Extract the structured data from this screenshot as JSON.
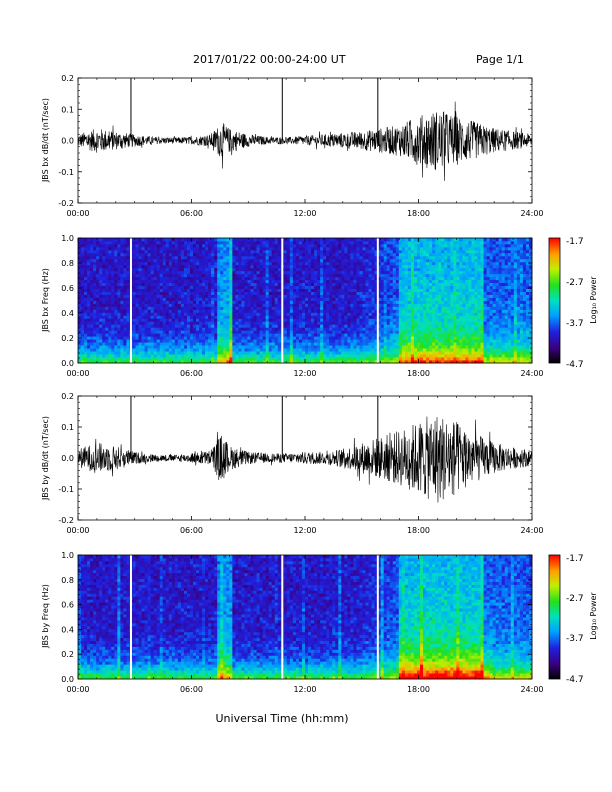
{
  "header": {
    "title": "2017/01/22  00:00-24:00 UT",
    "page": "Page 1/1"
  },
  "xlabel": "Universal Time (hh:mm)",
  "colorbar": {
    "label": "Log₁₀ Power",
    "ticks": [
      "-1.7",
      "-2.7",
      "-3.7",
      "-4.7"
    ],
    "range": [
      -4.7,
      -1.7
    ]
  },
  "chart_data": [
    {
      "type": "line",
      "name": "bx-waveform",
      "ylabel": "JBS bx dB/dt (nT/sec)",
      "x_ticks": [
        "00:00",
        "06:00",
        "12:00",
        "18:00",
        "24:00"
      ],
      "xlim_hours": [
        0,
        24
      ],
      "y_ticks": [
        "0.2",
        "0.1",
        "0.0",
        "-0.1",
        "-0.2"
      ],
      "ylim": [
        -0.2,
        0.2
      ],
      "envelope": [
        {
          "h": 0,
          "a": 0.02
        },
        {
          "h": 1,
          "a": 0.04
        },
        {
          "h": 2,
          "a": 0.03
        },
        {
          "h": 3,
          "a": 0.02
        },
        {
          "h": 4,
          "a": 0.012
        },
        {
          "h": 5,
          "a": 0.01
        },
        {
          "h": 6,
          "a": 0.012
        },
        {
          "h": 7,
          "a": 0.02
        },
        {
          "h": 7.6,
          "a": 0.06
        },
        {
          "h": 8,
          "a": 0.04
        },
        {
          "h": 9,
          "a": 0.02
        },
        {
          "h": 10,
          "a": 0.012
        },
        {
          "h": 11,
          "a": 0.01
        },
        {
          "h": 12,
          "a": 0.015
        },
        {
          "h": 13,
          "a": 0.02
        },
        {
          "h": 14,
          "a": 0.025
        },
        {
          "h": 15,
          "a": 0.03
        },
        {
          "h": 16,
          "a": 0.04
        },
        {
          "h": 17,
          "a": 0.05
        },
        {
          "h": 18,
          "a": 0.08
        },
        {
          "h": 19,
          "a": 0.1
        },
        {
          "h": 20,
          "a": 0.08
        },
        {
          "h": 21,
          "a": 0.06
        },
        {
          "h": 22,
          "a": 0.04
        },
        {
          "h": 23,
          "a": 0.03
        },
        {
          "h": 24,
          "a": 0.02
        }
      ],
      "spikes": [
        {
          "h": 2.8,
          "y": 0.2
        },
        {
          "h": 10.8,
          "y": 0.2
        },
        {
          "h": 15.85,
          "y": 0.2
        }
      ]
    },
    {
      "type": "heatmap",
      "name": "bx-spectrogram",
      "ylabel": "JBS bx Freq (Hz)",
      "x_ticks": [
        "00:00",
        "06:00",
        "12:00",
        "18:00",
        "24:00"
      ],
      "xlim_hours": [
        0,
        24
      ],
      "y_ticks": [
        "1.0",
        "0.8",
        "0.6",
        "0.4",
        "0.2",
        "0.0"
      ],
      "ylim": [
        0,
        1.0
      ],
      "data_gaps_hours": [
        2.8,
        10.8,
        15.85
      ]
    },
    {
      "type": "line",
      "name": "by-waveform",
      "ylabel": "JBS by dB/dt (nT/sec)",
      "x_ticks": [
        "00:00",
        "06:00",
        "12:00",
        "18:00",
        "24:00"
      ],
      "xlim_hours": [
        0,
        24
      ],
      "y_ticks": [
        "0.2",
        "0.1",
        "0.0",
        "-0.1",
        "-0.2"
      ],
      "ylim": [
        -0.2,
        0.2
      ],
      "envelope": [
        {
          "h": 0,
          "a": 0.03
        },
        {
          "h": 1,
          "a": 0.05
        },
        {
          "h": 2,
          "a": 0.04
        },
        {
          "h": 3,
          "a": 0.02
        },
        {
          "h": 4,
          "a": 0.012
        },
        {
          "h": 5,
          "a": 0.01
        },
        {
          "h": 6,
          "a": 0.015
        },
        {
          "h": 7,
          "a": 0.025
        },
        {
          "h": 7.6,
          "a": 0.08
        },
        {
          "h": 8,
          "a": 0.04
        },
        {
          "h": 9,
          "a": 0.02
        },
        {
          "h": 10,
          "a": 0.015
        },
        {
          "h": 11,
          "a": 0.015
        },
        {
          "h": 12,
          "a": 0.02
        },
        {
          "h": 13,
          "a": 0.02
        },
        {
          "h": 14,
          "a": 0.03
        },
        {
          "h": 15,
          "a": 0.05
        },
        {
          "h": 16,
          "a": 0.07
        },
        {
          "h": 17,
          "a": 0.09
        },
        {
          "h": 18,
          "a": 0.12
        },
        {
          "h": 19,
          "a": 0.15
        },
        {
          "h": 20,
          "a": 0.12
        },
        {
          "h": 21,
          "a": 0.08
        },
        {
          "h": 22,
          "a": 0.05
        },
        {
          "h": 23,
          "a": 0.035
        },
        {
          "h": 24,
          "a": 0.025
        }
      ],
      "spikes": [
        {
          "h": 2.8,
          "y": 0.2
        },
        {
          "h": 10.8,
          "y": 0.2
        },
        {
          "h": 15.85,
          "y": 0.2
        }
      ]
    },
    {
      "type": "heatmap",
      "name": "by-spectrogram",
      "ylabel": "JBS by Freq (Hz)",
      "x_ticks": [
        "00:00",
        "06:00",
        "12:00",
        "18:00",
        "24:00"
      ],
      "xlim_hours": [
        0,
        24
      ],
      "y_ticks": [
        "1.0",
        "0.8",
        "0.6",
        "0.4",
        "0.2",
        "0.0"
      ],
      "ylim": [
        0,
        1.0
      ],
      "data_gaps_hours": [
        2.8,
        10.8,
        15.85
      ]
    }
  ]
}
